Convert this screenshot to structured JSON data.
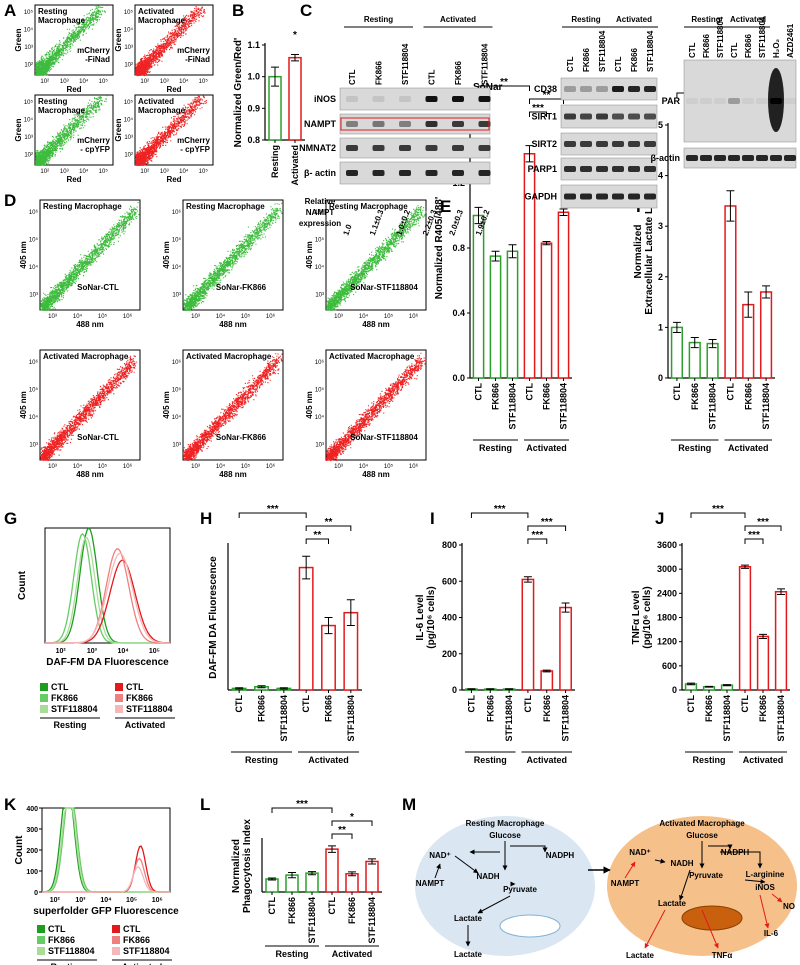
{
  "panel_letters": [
    "A",
    "B",
    "C",
    "D",
    "E",
    "F",
    "G",
    "H",
    "I",
    "J",
    "K",
    "L",
    "M"
  ],
  "flow_a": {
    "xlabel": "Red",
    "ylabel": "Green",
    "ticks": [
      "10²",
      "10³",
      "10⁴",
      "10⁵"
    ],
    "plots": [
      {
        "title": [
          "Resting",
          "Macrophage"
        ],
        "probe": [
          "mCherry",
          "-FiNad"
        ],
        "color": "#3dbb3d"
      },
      {
        "title": [
          "Activated",
          "Macrophage"
        ],
        "probe": [
          "mCherry",
          "-FiNad"
        ],
        "color": "#ee2222"
      },
      {
        "title": [
          "Resting",
          "Macrophage"
        ],
        "probe": [
          "mCherry",
          "- cpYFP"
        ],
        "color": "#3dbb3d"
      },
      {
        "title": [
          "Activated",
          "Macrophage"
        ],
        "probe": [
          "mCherry",
          "- cpYFP"
        ],
        "color": "#ee2222"
      }
    ]
  },
  "blot_c": {
    "groups": [
      "Resting",
      "Activated"
    ],
    "lanes": [
      "CTL",
      "FK866",
      "STF118804"
    ],
    "left_rows": [
      "iNOS",
      "NAMPT",
      "NMNAT2",
      "β- actin"
    ],
    "nampt_caption": [
      "Relative",
      "NAMPT",
      "expression"
    ],
    "nampt_values": [
      "1.0",
      "1.1±0.3",
      "1.0±0.2",
      "2.2±0.3",
      "2.0±0.3",
      "1.9±0.2"
    ],
    "middle_rows": [
      "CD38",
      "SIRT1",
      "SIRT2",
      "PARP1",
      "GAPDH"
    ],
    "right_lanes": [
      "CTL",
      "FK866",
      "STF118804",
      "CTL",
      "FK866",
      "STF118804",
      "H₂O₂",
      "AZD2461"
    ],
    "right_rows": [
      "PAR",
      "β-actin"
    ]
  },
  "flow_d": {
    "xlabel": "488 nm",
    "ylabel": "405 nm",
    "ticks": [
      "10³",
      "10⁴",
      "10⁵",
      "10⁶"
    ],
    "plots": [
      {
        "title": [
          "Resting Macrophage"
        ],
        "probe": [
          "SoNar-CTL"
        ],
        "color": "#3dbb3d"
      },
      {
        "title": [
          "Resting Macrophage"
        ],
        "probe": [
          "SoNar-FK866"
        ],
        "color": "#3dbb3d"
      },
      {
        "title": [
          "Resting Macrophage"
        ],
        "probe": [
          "SoNar-STF118804"
        ],
        "color": "#3dbb3d"
      },
      {
        "title": [
          "Activated Macrophage"
        ],
        "probe": [
          "SoNar-CTL"
        ],
        "color": "#ee2222"
      },
      {
        "title": [
          "Activated Macrophage"
        ],
        "probe": [
          "SoNar-FK866"
        ],
        "color": "#ee2222"
      },
      {
        "title": [
          "Activated Macrophage"
        ],
        "probe": [
          "SoNar-STF118804"
        ],
        "color": "#ee2222"
      }
    ]
  },
  "hist_g": {
    "xlabel": "DAF-FM DA Fluorescence",
    "ylabel": "Count",
    "xticks": [
      "10²",
      "10³",
      "10⁴",
      "10⁵"
    ],
    "legend": [
      {
        "group": "Resting",
        "entries": [
          {
            "name": "CTL",
            "color": "#1e9e1e"
          },
          {
            "name": "FK866",
            "color": "#66cc66"
          },
          {
            "name": "STF118804",
            "color": "#a8dd98"
          }
        ]
      },
      {
        "group": "Activated",
        "entries": [
          {
            "name": "CTL",
            "color": "#e31a1c"
          },
          {
            "name": "FK866",
            "color": "#f08080"
          },
          {
            "name": "STF118804",
            "color": "#f5b8b8"
          }
        ]
      }
    ]
  },
  "hist_k": {
    "xlabel": "superfolder GFP Fluorescence",
    "ylabel": "Count",
    "xticks": [
      "10²",
      "10³",
      "10⁴",
      "10⁵",
      "10⁶"
    ],
    "ylim": [
      0,
      400
    ],
    "yticks": [
      0,
      100,
      200,
      300,
      400
    ],
    "legend": [
      {
        "group": "Resting",
        "entries": [
          {
            "name": "CTL",
            "color": "#1e9e1e"
          },
          {
            "name": "FK866",
            "color": "#66cc66"
          },
          {
            "name": "STF118804",
            "color": "#a8dd98"
          }
        ]
      },
      {
        "group": "Activated",
        "entries": [
          {
            "name": "CTL",
            "color": "#e31a1c"
          },
          {
            "name": "FK866",
            "color": "#f08080"
          },
          {
            "name": "STF118804",
            "color": "#f5b8b8"
          }
        ]
      }
    ]
  },
  "diagram_m": {
    "resting": {
      "title": "Resting Macrophage",
      "nodes": [
        {
          "label": "Glucose",
          "color": "#000"
        },
        {
          "label": "NAD⁺",
          "color": "#000"
        },
        {
          "label": "NADPH",
          "color": "#000"
        },
        {
          "label": "NAMPT",
          "color": "#000"
        },
        {
          "label": "NADH",
          "color": "#000"
        },
        {
          "label": "Pyruvate",
          "color": "#000"
        },
        {
          "label": "Lactate",
          "color": "#000"
        },
        {
          "label": "Lactate",
          "color": "#000"
        }
      ]
    },
    "activated": {
      "title": "Activated Macrophage",
      "nodes": [
        {
          "label": "Glucose",
          "color": "#000"
        },
        {
          "label": "NAD⁺",
          "color": "#e31a1c"
        },
        {
          "label": "NADPH",
          "color": "#000"
        },
        {
          "label": "NAMPT",
          "color": "#e31a1c"
        },
        {
          "label": "NADH",
          "color": "#000"
        },
        {
          "label": "Pyruvate",
          "color": "#000"
        },
        {
          "label": "L-arginine",
          "color": "#000"
        },
        {
          "label": "iNOS",
          "color": "#e31a1c"
        },
        {
          "label": "Lactate",
          "color": "#000"
        },
        {
          "label": "NO",
          "color": "#e31a1c"
        },
        {
          "label": "IL-6",
          "color": "#e31a1c"
        },
        {
          "label": "Lactate",
          "color": "#e31a1c"
        },
        {
          "label": "TNFα",
          "color": "#e31a1c"
        }
      ]
    }
  },
  "chart_data": [
    {
      "type": "bar",
      "ylabel": [
        "Normalized Green/Red'"
      ],
      "categories": [
        "Resting",
        "Activated"
      ],
      "colors": [
        "#2ca02c",
        "#e31a1c"
      ],
      "values": [
        1.0,
        1.06
      ],
      "errors": [
        0.03,
        0.01
      ],
      "ylim": [
        0.8,
        1.1
      ],
      "yticks": [
        0.8,
        0.9,
        {
          "value": 1,
          "label": "1.0"
        },
        1.1
      ],
      "significance": [
        {
          "from": 1,
          "to": 1,
          "label": "*"
        }
      ]
    },
    {
      "type": "bar",
      "title": "SoNar",
      "ylabel": [
        "Normalized R405/488'"
      ],
      "categories": [
        "CTL",
        "FK866",
        "STF118804",
        "CTL",
        "FK866",
        "STF118804"
      ],
      "colors": [
        "#2ca02c",
        "#2ca02c",
        "#2ca02c",
        "#e31a1c",
        "#e31a1c",
        "#e31a1c"
      ],
      "groups": [
        "Resting",
        "Activated"
      ],
      "values": [
        1.0,
        0.75,
        0.78,
        1.38,
        0.83,
        1.02
      ],
      "errors": [
        0.05,
        0.03,
        0.04,
        0.05,
        0.01,
        0.02
      ],
      "ylim": [
        0,
        1.6
      ],
      "yticks": [
        {
          "value": 0,
          "label": "0.0"
        },
        0.4,
        0.8,
        1.2,
        1.6
      ],
      "significance": [
        {
          "from": 0,
          "to": 3,
          "label": "**"
        },
        {
          "from": 3,
          "to": 5,
          "label": "**"
        },
        {
          "from": 3,
          "to": 4,
          "label": "***"
        }
      ]
    },
    {
      "type": "bar",
      "ylabel": [
        "Normalized",
        "Extracellular Lactate Level"
      ],
      "categories": [
        "CTL",
        "FK866",
        "STF118804",
        "CTL",
        "FK866",
        "STF118804"
      ],
      "colors": [
        "#2ca02c",
        "#2ca02c",
        "#2ca02c",
        "#e31a1c",
        "#e31a1c",
        "#e31a1c"
      ],
      "groups": [
        "Resting",
        "Activated"
      ],
      "values": [
        1.0,
        0.7,
        0.68,
        3.4,
        1.45,
        1.7
      ],
      "errors": [
        0.1,
        0.1,
        0.08,
        0.3,
        0.25,
        0.12
      ],
      "ylim": [
        0,
        5
      ],
      "yticks": [
        0,
        1,
        2,
        3,
        4,
        5
      ],
      "significance": [
        {
          "from": 0,
          "to": 3,
          "label": "***"
        },
        {
          "from": 3,
          "to": 5,
          "label": "**"
        },
        {
          "from": 3,
          "to": 4,
          "label": "**"
        }
      ]
    },
    {
      "type": "bar",
      "ylabel": [
        "DAF-FM DA Fluorescence"
      ],
      "categories": [
        "CTL",
        "FK866",
        "STF118804",
        "CTL",
        "FK866",
        "STF118804"
      ],
      "colors": [
        "#2ca02c",
        "#2ca02c",
        "#2ca02c",
        "#e31a1c",
        "#e31a1c",
        "#e31a1c"
      ],
      "groups": [
        "Resting",
        "Activated"
      ],
      "values": [
        50,
        100,
        50,
        3800,
        2000,
        2400
      ],
      "errors": [
        20,
        30,
        20,
        350,
        250,
        400
      ],
      "ylim": [
        0,
        4500
      ],
      "significance": [
        {
          "from": 0,
          "to": 3,
          "label": "***"
        },
        {
          "from": 3,
          "to": 5,
          "label": "**"
        },
        {
          "from": 3,
          "to": 4,
          "label": "**"
        }
      ]
    },
    {
      "type": "bar",
      "ylabel": [
        "IL-6 Level",
        "(pg/10⁶ cells)"
      ],
      "categories": [
        "CTL",
        "FK866",
        "STF118804",
        "CTL",
        "FK866",
        "STF118804"
      ],
      "colors": [
        "#2ca02c",
        "#2ca02c",
        "#2ca02c",
        "#e31a1c",
        "#e31a1c",
        "#e31a1c"
      ],
      "groups": [
        "Resting",
        "Activated"
      ],
      "values": [
        5,
        5,
        5,
        610,
        105,
        455
      ],
      "errors": [
        2,
        2,
        2,
        15,
        5,
        25
      ],
      "ylim": [
        0,
        800
      ],
      "yticks": [
        0,
        200,
        400,
        600,
        800
      ],
      "significance": [
        {
          "from": 0,
          "to": 3,
          "label": "***"
        },
        {
          "from": 3,
          "to": 5,
          "label": "***"
        },
        {
          "from": 3,
          "to": 4,
          "label": "***"
        }
      ]
    },
    {
      "type": "bar",
      "ylabel": [
        "TNFα Level",
        "(pg/10⁶ cells)"
      ],
      "categories": [
        "CTL",
        "FK866",
        "STF118804",
        "CTL",
        "FK866",
        "STF118804"
      ],
      "colors": [
        "#2ca02c",
        "#2ca02c",
        "#2ca02c",
        "#e31a1c",
        "#e31a1c",
        "#e31a1c"
      ],
      "groups": [
        "Resting",
        "Activated"
      ],
      "values": [
        150,
        80,
        120,
        3060,
        1330,
        2440
      ],
      "errors": [
        20,
        10,
        15,
        40,
        50,
        70
      ],
      "ylim": [
        0,
        3600
      ],
      "yticks": [
        0,
        600,
        1200,
        1800,
        2400,
        3000,
        3600
      ],
      "significance": [
        {
          "from": 0,
          "to": 3,
          "label": "***"
        },
        {
          "from": 3,
          "to": 5,
          "label": "***"
        },
        {
          "from": 3,
          "to": 4,
          "label": "***"
        }
      ]
    },
    {
      "type": "bar",
      "ylabel": [
        "Normalized",
        "Phagocytosis Index"
      ],
      "categories": [
        "CTL",
        "FK866",
        "STF118804",
        "CTL",
        "FK866",
        "STF118804"
      ],
      "colors": [
        "#2ca02c",
        "#2ca02c",
        "#2ca02c",
        "#e31a1c",
        "#e31a1c",
        "#e31a1c"
      ],
      "groups": [
        "Resting",
        "Activated"
      ],
      "values": [
        1.0,
        1.3,
        1.45,
        3.3,
        1.4,
        2.35
      ],
      "errors": [
        0.08,
        0.2,
        0.12,
        0.25,
        0.15,
        0.2
      ],
      "ylim": [
        0,
        4
      ],
      "significance": [
        {
          "from": 0,
          "to": 3,
          "label": "***"
        },
        {
          "from": 3,
          "to": 5,
          "label": "*"
        },
        {
          "from": 3,
          "to": 4,
          "label": "**"
        }
      ]
    }
  ]
}
